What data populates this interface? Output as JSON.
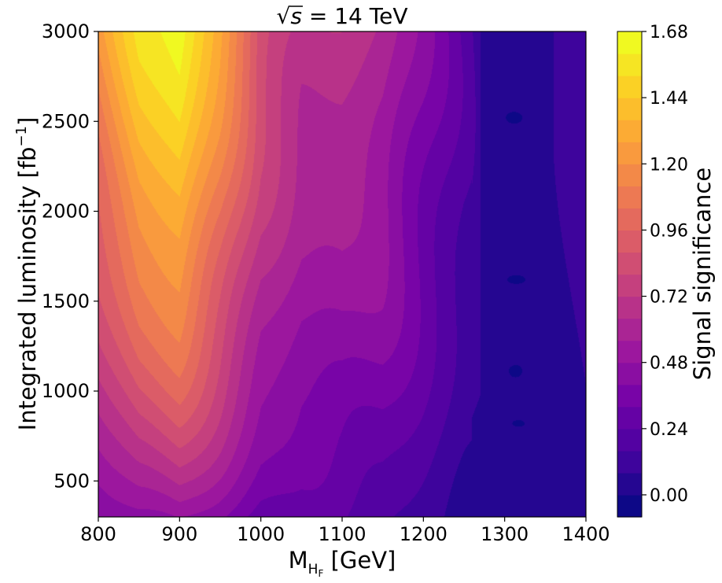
{
  "chart_data": {
    "type": "heatmap",
    "subtype": "filled-contour",
    "title": {
      "prefix": "√",
      "radicand": "s",
      "rest": " = 14 TeV"
    },
    "xlabel": {
      "main": "M",
      "sub": "H",
      "subsub": "F",
      "rest": " [GeV]"
    },
    "ylabel": {
      "main": "Integrated luminosity [fb",
      "sup": "−1",
      "rest": "]"
    },
    "colorbar_label": "Signal significance",
    "colormap": "plasma",
    "colormap_stops": [
      "#0d0887",
      "#46039f",
      "#7201a8",
      "#9c179e",
      "#bd3786",
      "#d8576b",
      "#ed7953",
      "#fb9f3a",
      "#fdca26",
      "#f0f921"
    ],
    "xlim": [
      800,
      1400
    ],
    "ylim": [
      300,
      3000
    ],
    "x_ticks": [
      "800",
      "900",
      "1000",
      "1100",
      "1200",
      "1300",
      "1400"
    ],
    "y_ticks": [
      "500",
      "1000",
      "1500",
      "2000",
      "2500",
      "3000"
    ],
    "y_tick_values": [
      500,
      1000,
      1500,
      2000,
      2500,
      3000
    ],
    "levels": {
      "min": -0.08,
      "max": 1.68,
      "step": 0.08
    },
    "colorbar_ticks": [
      "0.00",
      "0.24",
      "0.48",
      "0.72",
      "0.96",
      "1.20",
      "1.44",
      "1.68"
    ],
    "colorbar_tick_values": [
      0.0,
      0.24,
      0.48,
      0.72,
      0.96,
      1.2,
      1.44,
      1.68
    ],
    "significance_profile": {
      "mass": [
        800,
        850,
        900,
        950,
        1000,
        1050,
        1100,
        1150,
        1200,
        1250,
        1300,
        1350,
        1400
      ],
      "at_3000_fb": [
        1.2,
        1.52,
        1.66,
        1.3,
        0.88,
        0.72,
        0.7,
        0.62,
        0.42,
        0.2,
        0.04,
        0.05,
        0.16
      ]
    },
    "grid": false
  }
}
